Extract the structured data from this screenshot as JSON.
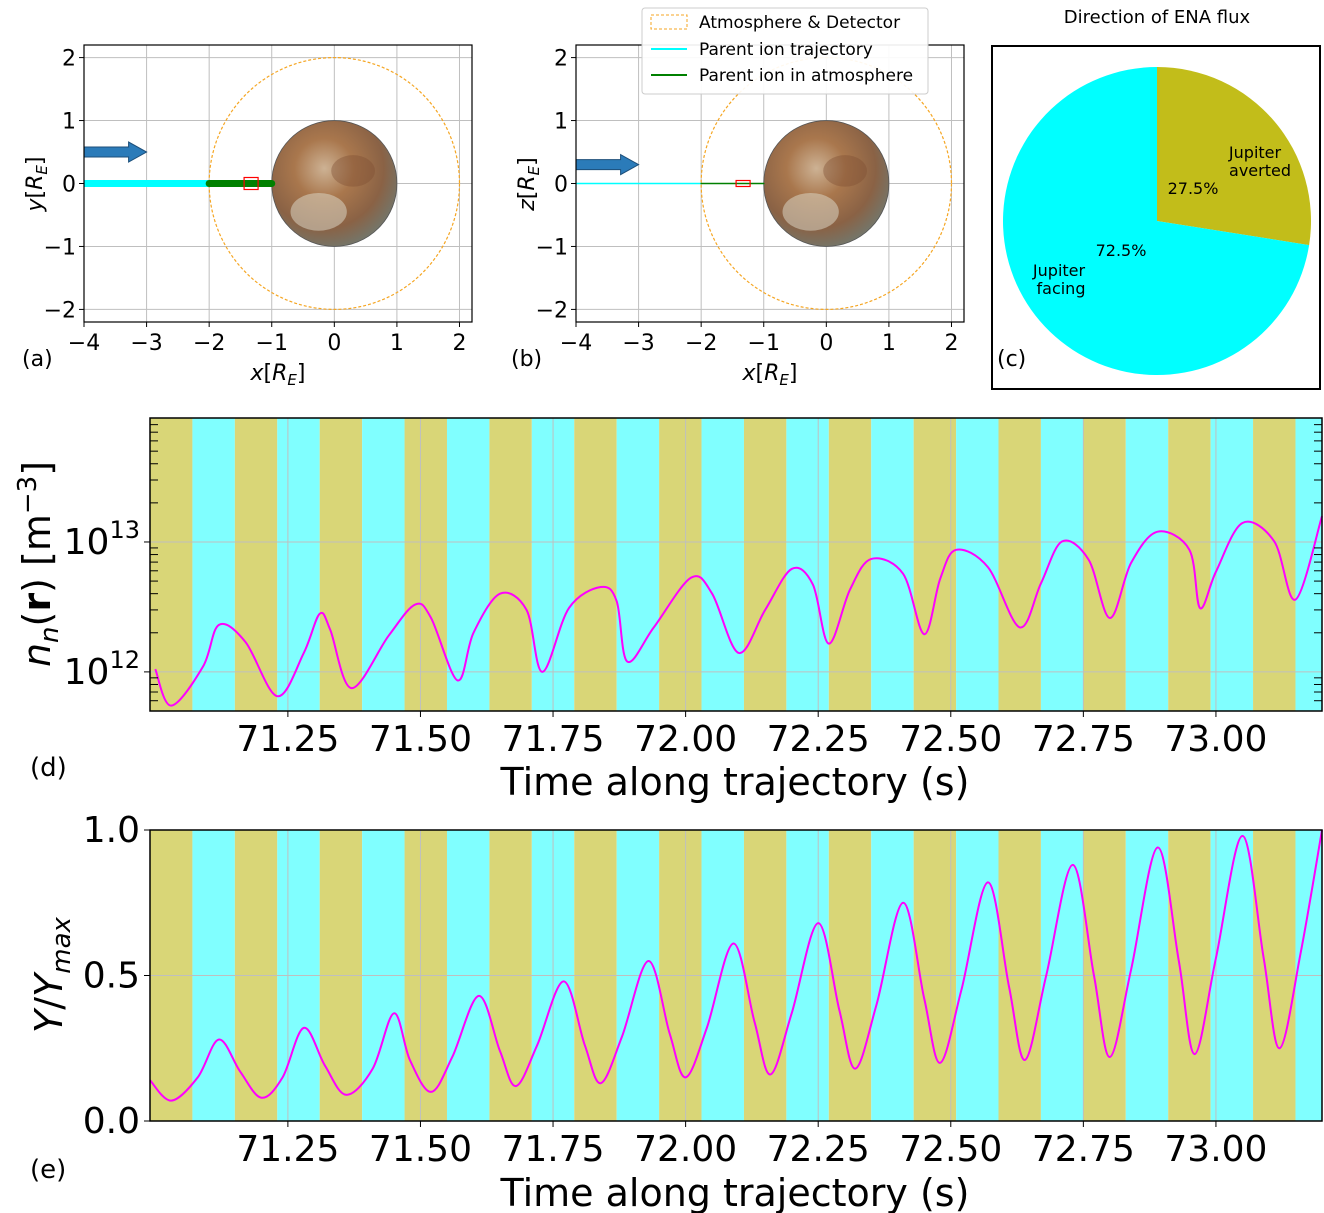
{
  "colors": {
    "averted": "#c2bd1a",
    "averted_band": "#d9d677",
    "facing": "#00ffff",
    "facing_band": "#80ffff",
    "curve": "#ff00ff",
    "detector": "#f5a623",
    "trajectory": "#00ffff",
    "in_atmosphere": "#008000",
    "arrow": "#2b7bb9",
    "box": "#ff0000",
    "grid": "#bfbfbf"
  },
  "panel_labels": {
    "a": "(a)",
    "b": "(b)",
    "c": "(c)",
    "d": "(d)",
    "e": "(e)"
  },
  "legend": {
    "items": [
      "Atmosphere & Detector",
      "Parent ion trajectory",
      "Parent ion in atmosphere"
    ]
  },
  "chart_data": [
    {
      "id": "a",
      "type": "scatter",
      "xlabel": "x[R_E]",
      "ylabel": "y[R_E]",
      "xlim": [
        -4,
        2.2
      ],
      "ylim": [
        -2.2,
        2.2
      ],
      "xticks": [
        -4,
        -3,
        -2,
        -1,
        0,
        1,
        2
      ],
      "xtick_labels": [
        "−4",
        "−3",
        "−2",
        "−1",
        "0",
        "1",
        "2"
      ],
      "yticks": [
        -2,
        -1,
        0,
        1,
        2
      ],
      "ytick_labels": [
        "−2",
        "−1",
        "0",
        "1",
        "2"
      ],
      "grid": true,
      "moon_radius": 1,
      "detector_radius": 2,
      "trajectory": {
        "x": [
          -4,
          -2
        ],
        "y": [
          0,
          0
        ]
      },
      "in_atmosphere": {
        "x": [
          -2,
          -1
        ],
        "y": [
          0,
          0
        ]
      },
      "box_center": [
        -1.33,
        0
      ],
      "arrow": {
        "x": [
          -4,
          -3
        ],
        "y": [
          0.5,
          0.5
        ]
      }
    },
    {
      "id": "b",
      "type": "scatter",
      "xlabel": "x[R_E]",
      "ylabel": "z[R_E]",
      "xlim": [
        -4,
        2.2
      ],
      "ylim": [
        -2.2,
        2.2
      ],
      "xticks": [
        -4,
        -3,
        -2,
        -1,
        0,
        1,
        2
      ],
      "xtick_labels": [
        "−4",
        "−3",
        "−2",
        "−1",
        "0",
        "1",
        "2"
      ],
      "yticks": [
        -2,
        -1,
        0,
        1,
        2
      ],
      "ytick_labels": [
        "−2",
        "−1",
        "0",
        "1",
        "2"
      ],
      "grid": true,
      "moon_radius": 1,
      "detector_radius": 2,
      "trajectory": {
        "x": [
          -4,
          -2
        ],
        "y": [
          0,
          0
        ]
      },
      "in_atmosphere": {
        "x": [
          -2,
          -1
        ],
        "y": [
          0,
          0
        ]
      },
      "box_center": [
        -1.33,
        0
      ],
      "arrow": {
        "x": [
          -4,
          -3
        ],
        "y": [
          0.3,
          0.3
        ]
      }
    },
    {
      "id": "c",
      "type": "pie",
      "title": "Direction of ENA flux",
      "slices": [
        {
          "label": "Jupiter averted",
          "value": 27.5,
          "pct": "27.5%"
        },
        {
          "label": "Jupiter facing",
          "value": 72.5,
          "pct": "72.5%"
        }
      ]
    },
    {
      "id": "d",
      "type": "line",
      "xlabel": "Time along trajectory (s)",
      "ylabel": "n_n(r) [m^-3]",
      "yscale": "log",
      "xlim": [
        70.99,
        73.2
      ],
      "ylim": [
        500000000000.0,
        90000000000000.0
      ],
      "xticks": [
        71.25,
        71.5,
        71.75,
        72.0,
        72.25,
        72.5,
        72.75,
        73.0
      ],
      "xtick_labels": [
        "71.25",
        "71.50",
        "71.75",
        "72.00",
        "72.25",
        "72.50",
        "72.75",
        "73.00"
      ],
      "yticks": [
        1000000000000.0,
        10000000000000.0
      ],
      "grid": true,
      "band_edges": [
        70.99,
        71.07,
        71.15,
        71.23,
        71.31,
        71.39,
        71.47,
        71.55,
        71.63,
        71.71,
        71.79,
        71.87,
        71.95,
        72.03,
        72.11,
        72.19,
        72.27,
        72.35,
        72.43,
        72.51,
        72.59,
        72.67,
        72.75,
        72.83,
        72.91,
        72.99,
        73.07,
        73.15,
        73.2
      ],
      "band_sequence": [
        "averted",
        "facing",
        "averted",
        "facing",
        "averted",
        "facing",
        "averted",
        "facing",
        "averted",
        "facing",
        "averted",
        "facing",
        "averted",
        "facing",
        "averted",
        "facing",
        "averted",
        "facing",
        "averted",
        "facing",
        "averted",
        "facing",
        "averted",
        "facing",
        "averted",
        "facing",
        "averted",
        "facing"
      ],
      "x": [
        71.0,
        71.03,
        71.09,
        71.12,
        71.17,
        71.23,
        71.28,
        71.31,
        71.33,
        71.37,
        71.44,
        71.49,
        71.52,
        71.57,
        71.6,
        71.65,
        71.7,
        71.73,
        71.78,
        71.84,
        71.87,
        71.89,
        71.94,
        72.01,
        72.05,
        72.1,
        72.15,
        72.2,
        72.24,
        72.27,
        72.31,
        72.35,
        72.41,
        72.45,
        72.48,
        72.51,
        72.57,
        72.63,
        72.67,
        72.71,
        72.76,
        72.8,
        72.84,
        72.89,
        72.95,
        72.97,
        73.0,
        73.05,
        73.11,
        73.15,
        73.2
      ],
      "y": [
        1050000000000.0,
        550000000000.0,
        1100000000000.0,
        2300000000000.0,
        1700000000000.0,
        650000000000.0,
        1400000000000.0,
        2800000000000.0,
        2100000000000.0,
        750000000000.0,
        1900000000000.0,
        3300000000000.0,
        2600000000000.0,
        860000000000.0,
        2000000000000.0,
        4000000000000.0,
        3000000000000.0,
        1000000000000.0,
        3100000000000.0,
        4500000000000.0,
        3500000000000.0,
        1200000000000.0,
        2200000000000.0,
        5300000000000.0,
        4000000000000.0,
        1400000000000.0,
        3000000000000.0,
        6200000000000.0,
        4700000000000.0,
        1650000000000.0,
        4300000000000.0,
        7400000000000.0,
        5700000000000.0,
        1950000000000.0,
        5200000000000.0,
        8700000000000.0,
        6400000000000.0,
        2200000000000.0,
        4800000000000.0,
        10100000000000.0,
        7300000000000.0,
        2600000000000.0,
        6900000000000.0,
        12000000000000.0,
        8700000000000.0,
        3100000000000.0,
        5900000000000.0,
        14000000000000.0,
        10100000000000.0,
        3600000000000.0,
        15800000000000.0
      ]
    },
    {
      "id": "e",
      "type": "line",
      "xlabel": "Time along trajectory (s)",
      "ylabel": "Y/Y_max",
      "xlim": [
        70.99,
        73.2
      ],
      "ylim": [
        0,
        1
      ],
      "xticks": [
        71.25,
        71.5,
        71.75,
        72.0,
        72.25,
        72.5,
        72.75,
        73.0
      ],
      "xtick_labels": [
        "71.25",
        "71.50",
        "71.75",
        "72.00",
        "72.25",
        "72.50",
        "72.75",
        "73.00"
      ],
      "yticks": [
        0,
        0.5,
        1
      ],
      "ytick_labels": [
        "0.0",
        "0.5",
        "1.0"
      ],
      "grid": true,
      "band_edges": [
        70.99,
        71.07,
        71.15,
        71.23,
        71.31,
        71.39,
        71.47,
        71.55,
        71.63,
        71.71,
        71.79,
        71.87,
        71.95,
        72.03,
        72.11,
        72.19,
        72.27,
        72.35,
        72.43,
        72.51,
        72.59,
        72.67,
        72.75,
        72.83,
        72.91,
        72.99,
        73.07,
        73.15,
        73.2
      ],
      "band_sequence": [
        "averted",
        "facing",
        "averted",
        "facing",
        "averted",
        "facing",
        "averted",
        "facing",
        "averted",
        "facing",
        "averted",
        "facing",
        "averted",
        "facing",
        "averted",
        "facing",
        "averted",
        "facing",
        "averted",
        "facing",
        "averted",
        "facing",
        "averted",
        "facing",
        "averted",
        "facing",
        "averted",
        "facing"
      ],
      "x": [
        70.99,
        71.03,
        71.08,
        71.12,
        71.16,
        71.2,
        71.24,
        71.28,
        71.32,
        71.36,
        71.41,
        71.45,
        71.48,
        71.52,
        71.56,
        71.61,
        71.65,
        71.68,
        71.72,
        71.77,
        71.81,
        71.84,
        71.88,
        71.93,
        71.97,
        72.0,
        72.04,
        72.09,
        72.13,
        72.16,
        72.2,
        72.25,
        72.29,
        72.32,
        72.36,
        72.41,
        72.45,
        72.48,
        72.52,
        72.57,
        72.61,
        72.64,
        72.68,
        72.73,
        72.77,
        72.8,
        72.84,
        72.89,
        72.93,
        72.96,
        73.0,
        73.05,
        73.09,
        73.12,
        73.16,
        73.2
      ],
      "y": [
        0.14,
        0.07,
        0.15,
        0.28,
        0.17,
        0.08,
        0.15,
        0.32,
        0.19,
        0.09,
        0.18,
        0.37,
        0.21,
        0.1,
        0.22,
        0.43,
        0.24,
        0.12,
        0.26,
        0.48,
        0.26,
        0.13,
        0.29,
        0.55,
        0.3,
        0.15,
        0.32,
        0.61,
        0.34,
        0.16,
        0.37,
        0.68,
        0.38,
        0.18,
        0.4,
        0.75,
        0.42,
        0.2,
        0.45,
        0.82,
        0.46,
        0.21,
        0.5,
        0.88,
        0.5,
        0.22,
        0.52,
        0.94,
        0.55,
        0.23,
        0.56,
        0.98,
        0.56,
        0.25,
        0.58,
        1.0
      ]
    }
  ]
}
